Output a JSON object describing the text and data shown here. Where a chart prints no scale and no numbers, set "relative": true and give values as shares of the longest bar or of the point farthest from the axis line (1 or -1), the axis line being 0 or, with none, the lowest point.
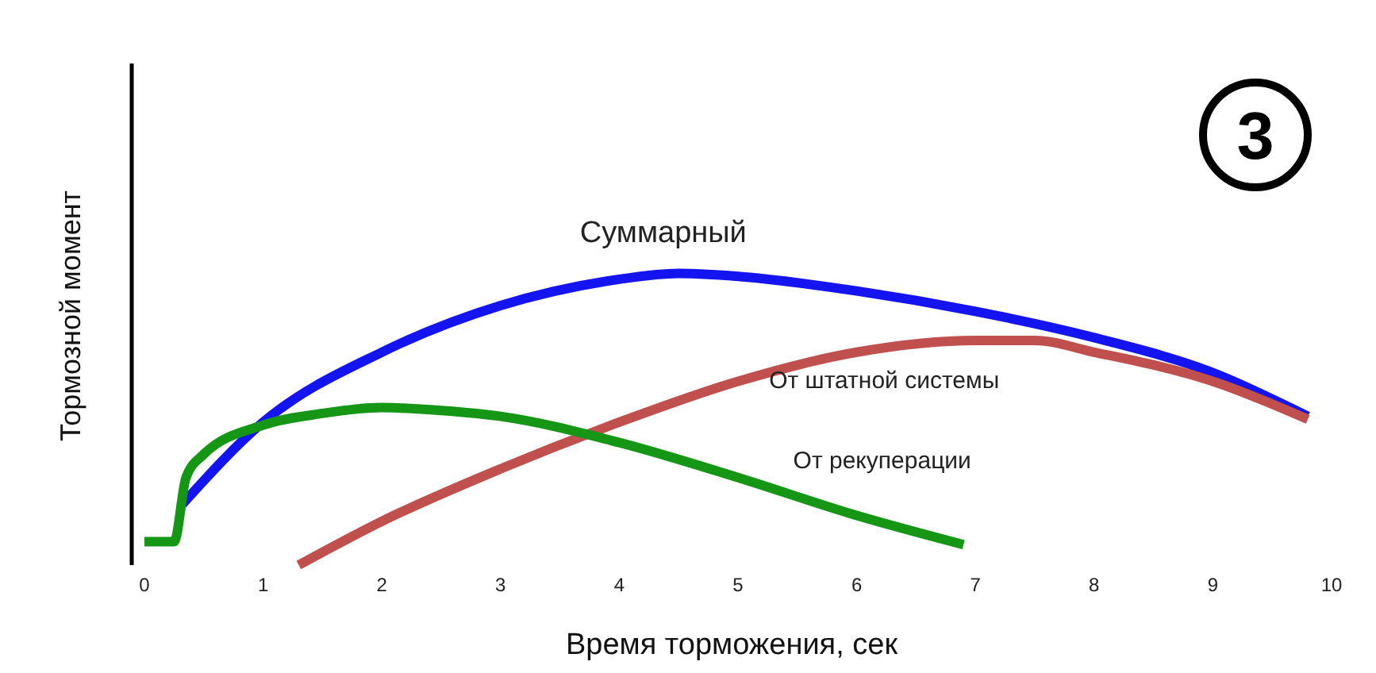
{
  "chart_data": {
    "type": "line",
    "relative": true,
    "xlabel": "Время торможения, сек",
    "ylabel": "Тормозной момент",
    "xlim": [
      0,
      10
    ],
    "xticks": [
      0,
      1,
      2,
      3,
      4,
      5,
      6,
      7,
      8,
      9,
      10
    ],
    "grid": false,
    "legend": false,
    "marker": "none",
    "line_style": "solid",
    "annotations": [
      "3"
    ],
    "series": [
      {
        "name": "Суммарный",
        "color": "#1414f0",
        "x": [
          0.3,
          1,
          2,
          3,
          4,
          4.5,
          5,
          6,
          7,
          8,
          9,
          9.8
        ],
        "values": [
          0.2,
          0.49,
          0.73,
          0.89,
          0.98,
          1,
          0.99,
          0.94,
          0.87,
          0.78,
          0.66,
          0.51
        ]
      },
      {
        "name": "От штатной системы",
        "color": "#c0504d",
        "x": [
          1.3,
          2,
          3,
          4,
          5,
          6,
          7,
          7.5,
          8,
          9,
          9.8
        ],
        "values": [
          0,
          0.15,
          0.33,
          0.49,
          0.63,
          0.73,
          0.77,
          0.77,
          0.73,
          0.63,
          0.5
        ]
      },
      {
        "name": "От рекуперации",
        "color": "#159615",
        "x": [
          0,
          0.25,
          0.35,
          0.5,
          1,
          1.5,
          2,
          2.5,
          3,
          4,
          5,
          6,
          6.9
        ],
        "values": [
          0.08,
          0.08,
          0.3,
          0.38,
          0.48,
          0.52,
          0.54,
          0.53,
          0.51,
          0.42,
          0.3,
          0.17,
          0.07
        ]
      }
    ]
  }
}
